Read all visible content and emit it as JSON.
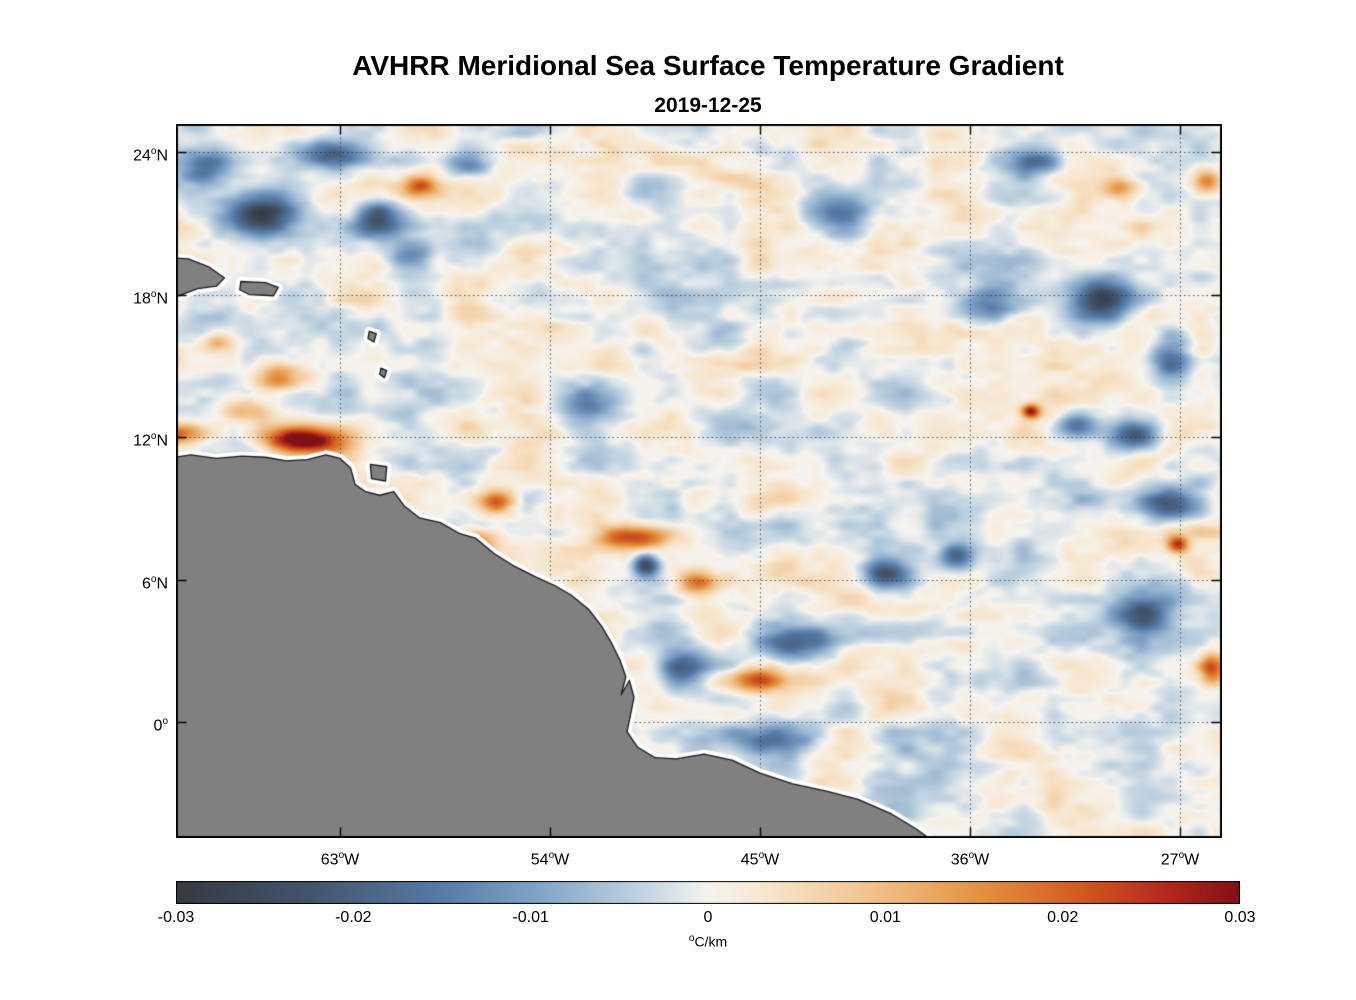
{
  "chart_data": {
    "type": "heatmap",
    "title": "AVHRR Meridional Sea Surface Temperature Gradient",
    "subtitle": "2019-12-25",
    "xlabel": "",
    "ylabel": "",
    "grid": "dotted",
    "grid_color": "rgba(35,50,75,0.8)",
    "degree_symbol": "o",
    "lon_range": [
      -70.03,
      -25.2
    ],
    "lat_range": [
      -4.88,
      25.18
    ],
    "lon_ticks": [
      {
        "value": -63,
        "label": "63",
        "suffix": "W"
      },
      {
        "value": -54,
        "label": "54",
        "suffix": "W"
      },
      {
        "value": -45,
        "label": "45",
        "suffix": "W"
      },
      {
        "value": -36,
        "label": "36",
        "suffix": "W"
      },
      {
        "value": -27,
        "label": "27",
        "suffix": "W"
      }
    ],
    "lat_ticks": [
      {
        "value": 24,
        "label": "24",
        "suffix": "N"
      },
      {
        "value": 18,
        "label": "18",
        "suffix": "N"
      },
      {
        "value": 12,
        "label": "12",
        "suffix": "N"
      },
      {
        "value": 6,
        "label": "6",
        "suffix": "N"
      },
      {
        "value": 0,
        "label": "0",
        "suffix": ""
      }
    ],
    "colorbar": {
      "min": -0.03,
      "max": 0.03,
      "ticks": [
        "-0.03",
        "-0.02",
        "-0.01",
        "0",
        "0.01",
        "0.02",
        "0.03"
      ],
      "tick_values": [
        -0.03,
        -0.02,
        -0.01,
        0,
        0.01,
        0.02,
        0.03
      ],
      "unit_sup": "o",
      "unit_text": "C/km",
      "stops": [
        [
          0.0,
          "#343a42"
        ],
        [
          0.12,
          "#42536a"
        ],
        [
          0.25,
          "#567ba6"
        ],
        [
          0.35,
          "#86a8c9"
        ],
        [
          0.44,
          "#c3d5e2"
        ],
        [
          0.5,
          "#f6f4ef"
        ],
        [
          0.56,
          "#f7e5cb"
        ],
        [
          0.66,
          "#f1c089"
        ],
        [
          0.76,
          "#e3903c"
        ],
        [
          0.85,
          "#d35a20"
        ],
        [
          0.93,
          "#b6281e"
        ],
        [
          1.0,
          "#821015"
        ]
      ]
    },
    "land_color": "#808080",
    "coast_line_color": "#1a1a1a",
    "coast_halo_color": "#ffffff",
    "field": {
      "units": "degC/km",
      "seed": 7,
      "noise_amplitude": 0.0095,
      "anomalies": [
        [
          -64.6,
          11.9,
          0.034,
          1.7,
          0.55
        ],
        [
          -69.8,
          12.15,
          0.02,
          1.1,
          0.45
        ],
        [
          -66.9,
          13.1,
          0.013,
          1.1,
          0.5
        ],
        [
          -65.6,
          14.5,
          0.021,
          1.0,
          0.6
        ],
        [
          -68.3,
          16.0,
          0.012,
          0.8,
          0.5
        ],
        [
          -66.2,
          21.4,
          -0.027,
          1.6,
          0.9
        ],
        [
          -68.9,
          23.5,
          -0.02,
          1.1,
          0.7
        ],
        [
          -63.3,
          23.9,
          -0.024,
          1.6,
          0.6
        ],
        [
          -61.4,
          21.2,
          -0.018,
          1.0,
          0.8
        ],
        [
          -59.6,
          22.6,
          0.018,
          0.7,
          0.45
        ],
        [
          -57.4,
          23.5,
          -0.016,
          1.1,
          0.6
        ],
        [
          -60.0,
          19.6,
          -0.013,
          0.9,
          0.5
        ],
        [
          -56.3,
          9.3,
          0.021,
          0.9,
          0.5
        ],
        [
          -57.2,
          7.6,
          0.019,
          1.1,
          0.5
        ],
        [
          -50.3,
          7.8,
          0.024,
          1.5,
          0.5
        ],
        [
          -47.7,
          5.9,
          0.02,
          0.9,
          0.5
        ],
        [
          -49.9,
          6.6,
          -0.024,
          0.55,
          0.5
        ],
        [
          -48.4,
          2.2,
          -0.018,
          1.0,
          0.9
        ],
        [
          -45.2,
          1.8,
          0.018,
          1.6,
          0.5
        ],
        [
          -43.6,
          3.4,
          -0.018,
          1.6,
          0.7
        ],
        [
          -39.6,
          6.2,
          -0.021,
          1.0,
          0.6
        ],
        [
          -36.6,
          7.0,
          -0.019,
          0.7,
          0.5
        ],
        [
          -44.3,
          -0.6,
          -0.013,
          2.0,
          0.6
        ],
        [
          -33.4,
          13.1,
          0.028,
          0.4,
          0.3
        ],
        [
          -31.4,
          12.5,
          -0.019,
          0.9,
          0.55
        ],
        [
          -29.0,
          12.1,
          -0.021,
          1.0,
          0.6
        ],
        [
          -30.4,
          17.8,
          -0.024,
          1.3,
          0.9
        ],
        [
          -27.4,
          15.3,
          -0.018,
          0.8,
          1.1
        ],
        [
          -27.6,
          9.2,
          -0.021,
          1.2,
          0.7
        ],
        [
          -28.6,
          4.6,
          -0.019,
          1.1,
          0.9
        ],
        [
          -29.6,
          22.5,
          0.017,
          0.8,
          0.5
        ],
        [
          -25.9,
          22.8,
          0.019,
          0.6,
          0.5
        ],
        [
          -33.1,
          23.6,
          -0.018,
          1.1,
          0.5
        ],
        [
          -27.1,
          7.5,
          0.024,
          0.45,
          0.35
        ],
        [
          -25.7,
          2.3,
          0.022,
          0.6,
          0.7
        ],
        [
          -35.3,
          17.5,
          -0.012,
          1.2,
          0.8
        ],
        [
          -41.5,
          21.5,
          -0.01,
          1.5,
          0.8
        ],
        [
          -52.5,
          13.5,
          -0.01,
          1.2,
          0.7
        ],
        [
          -46.5,
          -3.2,
          0.016,
          1.5,
          0.5
        ],
        [
          -53.6,
          3.0,
          0.012,
          1.0,
          0.6
        ]
      ]
    },
    "land_polygons": [
      [
        [
          -70.7,
          11.05
        ],
        [
          -69.4,
          11.25
        ],
        [
          -68.3,
          11.1
        ],
        [
          -67.2,
          11.2
        ],
        [
          -66.2,
          11.15
        ],
        [
          -65.3,
          11.0
        ],
        [
          -64.4,
          11.05
        ],
        [
          -63.6,
          11.25
        ],
        [
          -63.0,
          11.1
        ],
        [
          -62.55,
          10.7
        ],
        [
          -62.35,
          10.0
        ],
        [
          -61.9,
          9.7
        ],
        [
          -61.3,
          9.55
        ],
        [
          -60.7,
          9.7
        ],
        [
          -60.25,
          9.1
        ],
        [
          -59.6,
          8.6
        ],
        [
          -58.7,
          8.4
        ],
        [
          -57.9,
          7.95
        ],
        [
          -57.2,
          7.75
        ],
        [
          -56.4,
          7.1
        ],
        [
          -55.6,
          6.6
        ],
        [
          -54.6,
          6.1
        ],
        [
          -53.8,
          5.75
        ],
        [
          -53.1,
          5.35
        ],
        [
          -52.35,
          4.75
        ],
        [
          -51.8,
          4.05
        ],
        [
          -51.35,
          3.3
        ],
        [
          -51.0,
          2.6
        ],
        [
          -50.75,
          1.9
        ],
        [
          -50.95,
          1.15
        ],
        [
          -50.6,
          1.75
        ],
        [
          -50.4,
          1.05
        ],
        [
          -50.55,
          0.3
        ],
        [
          -50.7,
          -0.4
        ],
        [
          -50.25,
          -1.05
        ],
        [
          -49.5,
          -1.5
        ],
        [
          -48.6,
          -1.55
        ],
        [
          -47.4,
          -1.35
        ],
        [
          -46.2,
          -1.6
        ],
        [
          -45.0,
          -2.15
        ],
        [
          -43.6,
          -2.6
        ],
        [
          -42.2,
          -2.9
        ],
        [
          -40.8,
          -3.25
        ],
        [
          -39.4,
          -3.85
        ],
        [
          -38.3,
          -4.5
        ],
        [
          -37.4,
          -5.15
        ],
        [
          -36.8,
          -5.8
        ],
        [
          -71.2,
          -5.8
        ]
      ],
      [
        [
          -70.4,
          19.55
        ],
        [
          -69.5,
          19.5
        ],
        [
          -68.6,
          19.15
        ],
        [
          -67.95,
          18.7
        ],
        [
          -68.3,
          18.35
        ],
        [
          -69.1,
          18.25
        ],
        [
          -69.9,
          17.95
        ],
        [
          -70.4,
          18.0
        ]
      ],
      [
        [
          -67.25,
          18.55
        ],
        [
          -66.2,
          18.5
        ],
        [
          -65.65,
          18.3
        ],
        [
          -65.85,
          17.95
        ],
        [
          -66.9,
          18.0
        ],
        [
          -67.3,
          18.2
        ]
      ],
      [
        [
          -61.7,
          10.85
        ],
        [
          -61.0,
          10.75
        ],
        [
          -61.05,
          10.15
        ],
        [
          -61.65,
          10.25
        ]
      ],
      [
        [
          -61.75,
          16.45
        ],
        [
          -61.45,
          16.35
        ],
        [
          -61.55,
          16.0
        ],
        [
          -61.8,
          16.15
        ]
      ],
      [
        [
          -61.25,
          14.9
        ],
        [
          -61.0,
          14.8
        ],
        [
          -61.1,
          14.5
        ],
        [
          -61.3,
          14.65
        ]
      ]
    ]
  }
}
